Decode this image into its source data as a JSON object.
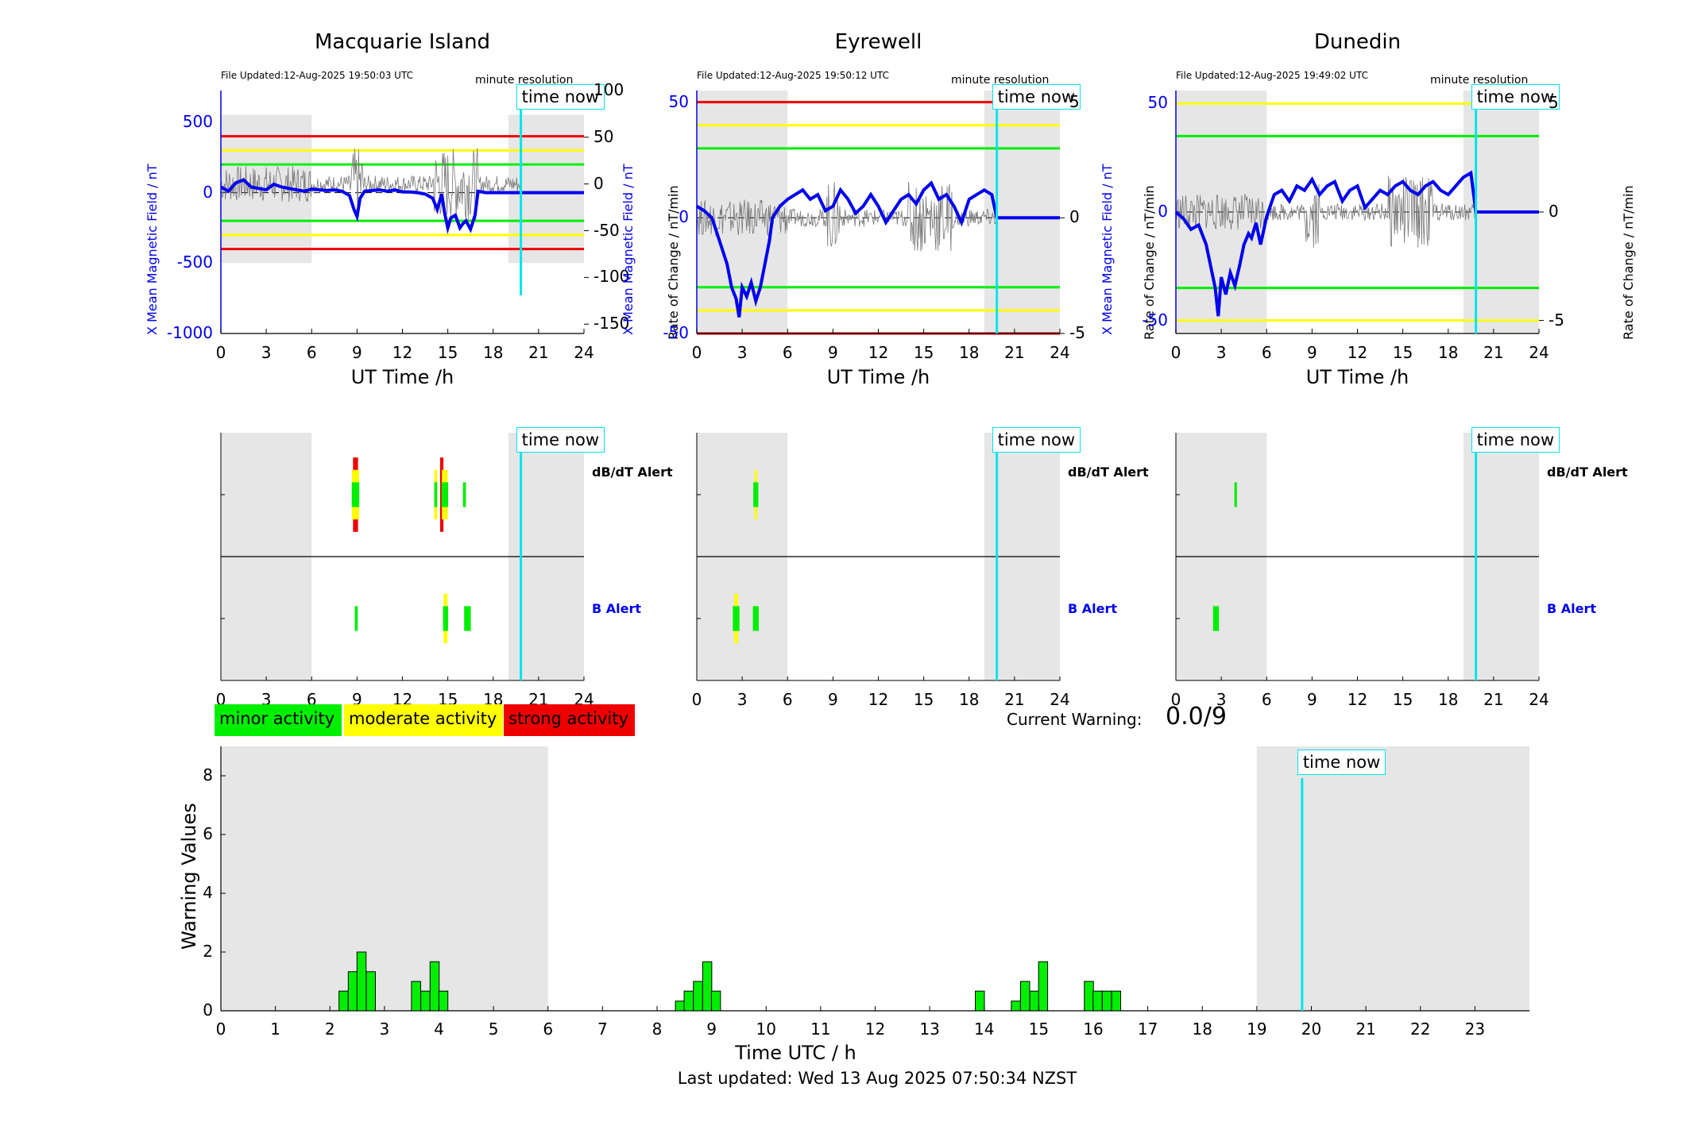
{
  "colors": {
    "shade": "#e6e6e6",
    "blue_line": "#0000ee",
    "grey_line": "#777777",
    "red": "#ee0000",
    "yellow": "#ffff00",
    "green": "#00ee00",
    "cyan": "#00e5ee",
    "black": "#000000"
  },
  "stations": [
    {
      "title": "Macquarie Island",
      "file_updated": "File Updated:12-Aug-2025 19:50:03 UTC",
      "resolution": "minute resolution",
      "time_now_label": "time now",
      "xlabel": "UT Time /h",
      "left_ylabel": "X Mean Magnetic Field / nT",
      "right_ylabel": "Rate of Change / nT/min",
      "x_ticks": [
        "0",
        "3",
        "6",
        "9",
        "12",
        "15",
        "18",
        "21",
        "24"
      ],
      "left_ticks": [
        {
          "v": 500,
          "t": "500"
        },
        {
          "v": 0,
          "t": "0"
        },
        {
          "v": -500,
          "t": "-500"
        },
        {
          "v": -1000,
          "t": "-1000"
        }
      ],
      "right_ticks": [
        {
          "v": 100,
          "t": "100"
        },
        {
          "v": 50,
          "t": "50"
        },
        {
          "v": 0,
          "t": "0"
        },
        {
          "v": -50,
          "t": "-50"
        },
        {
          "v": -100,
          "t": "-100"
        },
        {
          "v": -150,
          "t": "-150"
        }
      ],
      "left_range": [
        -1000,
        725
      ],
      "right_range": [
        -160,
        100
      ],
      "shade_top_frac": 0.1,
      "shade_bottom_frac": 0.71,
      "levels_left": [
        {
          "v": 400,
          "c": "red"
        },
        {
          "v": 300,
          "c": "yellow"
        },
        {
          "v": 200,
          "c": "green"
        },
        {
          "v": -200,
          "c": "green"
        },
        {
          "v": -300,
          "c": "yellow"
        },
        {
          "v": -400,
          "c": "red"
        }
      ],
      "time_now_h": 19.83,
      "series_x_mean": {
        "x": [
          0,
          0.5,
          1,
          1.5,
          2,
          2.5,
          3,
          3.5,
          4,
          4.5,
          5,
          5.5,
          6,
          6.5,
          7,
          7.5,
          8,
          8.5,
          8.8,
          9,
          9.2,
          9.5,
          10,
          10.5,
          11,
          11.5,
          12,
          12.5,
          13,
          13.5,
          14,
          14.3,
          14.6,
          14.8,
          15,
          15.2,
          15.5,
          15.8,
          16,
          16.2,
          16.5,
          16.8,
          17,
          17.5,
          18,
          18.5,
          19,
          19.5,
          19.83,
          20,
          21,
          22,
          23,
          24
        ],
        "y": [
          40,
          10,
          70,
          90,
          40,
          30,
          20,
          60,
          40,
          30,
          20,
          10,
          25,
          20,
          15,
          20,
          10,
          -20,
          -120,
          -170,
          -40,
          10,
          15,
          20,
          10,
          20,
          5,
          5,
          0,
          -10,
          -40,
          -120,
          -10,
          -150,
          -250,
          -180,
          -160,
          -250,
          -220,
          -200,
          -260,
          -160,
          10,
          0,
          0,
          0,
          0,
          0,
          0,
          0,
          0,
          0,
          0,
          0
        ]
      },
      "alerts": {
        "dbdt_label": "dB/dT Alert",
        "b_label": "B Alert",
        "dbdt_bars": [
          {
            "x": 8.9,
            "w": 0.6,
            "c": "red",
            "h": 0.6
          },
          {
            "x": 8.9,
            "w": 0.85,
            "c": "yellow",
            "h": 0.4
          },
          {
            "x": 8.9,
            "w": 0.9,
            "c": "green",
            "h": 0.2
          },
          {
            "x": 14.2,
            "w": 0.35,
            "c": "yellow",
            "h": 0.4
          },
          {
            "x": 14.2,
            "w": 0.35,
            "c": "green",
            "h": 0.2
          },
          {
            "x": 14.6,
            "w": 0.4,
            "c": "red",
            "h": 0.6
          },
          {
            "x": 14.8,
            "w": 0.7,
            "c": "yellow",
            "h": 0.4
          },
          {
            "x": 14.8,
            "w": 0.8,
            "c": "green",
            "h": 0.2
          },
          {
            "x": 16.1,
            "w": 0.35,
            "c": "green",
            "h": 0.2
          }
        ],
        "b_bars": [
          {
            "x": 8.95,
            "w": 0.35,
            "c": "green",
            "h": 0.2
          },
          {
            "x": 14.85,
            "w": 0.45,
            "c": "yellow",
            "h": 0.4
          },
          {
            "x": 14.85,
            "w": 0.6,
            "c": "green",
            "h": 0.2
          },
          {
            "x": 16.3,
            "w": 0.8,
            "c": "green",
            "h": 0.2
          }
        ]
      }
    },
    {
      "title": "Eyrewell",
      "file_updated": "File Updated:12-Aug-2025 19:50:12 UTC",
      "resolution": "minute resolution",
      "time_now_label": "time now",
      "xlabel": "UT Time /h",
      "left_ylabel": "X Mean Magnetic Field / nT",
      "right_ylabel": "Rate of Change / nT/min",
      "x_ticks": [
        "0",
        "3",
        "6",
        "9",
        "12",
        "15",
        "18",
        "21",
        "24"
      ],
      "left_ticks": [
        {
          "v": 50,
          "t": "50"
        },
        {
          "v": 0,
          "t": "0"
        },
        {
          "v": -50,
          "t": "-50"
        }
      ],
      "right_ticks": [
        {
          "v": 5,
          "t": "5"
        },
        {
          "v": 0,
          "t": "0"
        },
        {
          "v": -5,
          "t": "-5"
        }
      ],
      "left_range": [
        -50,
        55
      ],
      "right_range": [
        -5,
        5.5
      ],
      "shade_top_frac": 0.0,
      "shade_bottom_frac": 1.0,
      "levels_left": [
        {
          "v": 50,
          "c": "red"
        },
        {
          "v": 40,
          "c": "yellow"
        },
        {
          "v": 30,
          "c": "green"
        },
        {
          "v": -30,
          "c": "green"
        },
        {
          "v": -40,
          "c": "yellow"
        },
        {
          "v": -50,
          "c": "red"
        }
      ],
      "time_now_h": 19.83,
      "series_x_mean": {
        "x": [
          0,
          0.5,
          1,
          1.5,
          2,
          2.3,
          2.6,
          2.8,
          3,
          3.3,
          3.6,
          3.9,
          4.2,
          4.5,
          4.8,
          5,
          5.5,
          6,
          6.5,
          7,
          7.5,
          8,
          8.5,
          9,
          9.5,
          10,
          10.5,
          11,
          11.5,
          12,
          12.5,
          13,
          13.5,
          14,
          14.5,
          15,
          15.5,
          16,
          16.5,
          17,
          17.5,
          18,
          18.5,
          19,
          19.5,
          19.83,
          20,
          21,
          22,
          23,
          24
        ],
        "y": [
          5,
          3,
          0,
          -10,
          -20,
          -30,
          -35,
          -43,
          -30,
          -34,
          -28,
          -36,
          -30,
          -20,
          -10,
          0,
          5,
          8,
          10,
          12,
          8,
          10,
          3,
          5,
          12,
          8,
          2,
          5,
          10,
          5,
          -2,
          3,
          8,
          10,
          6,
          12,
          15,
          8,
          10,
          5,
          -2,
          8,
          10,
          12,
          10,
          0,
          0,
          0,
          0,
          0,
          0
        ]
      },
      "alerts": {
        "dbdt_label": "dB/dT Alert",
        "b_label": "B Alert",
        "dbdt_bars": [
          {
            "x": 3.9,
            "w": 0.3,
            "c": "yellow",
            "h": 0.4
          },
          {
            "x": 3.9,
            "w": 0.6,
            "c": "green",
            "h": 0.2
          }
        ],
        "b_bars": [
          {
            "x": 2.6,
            "w": 0.45,
            "c": "yellow",
            "h": 0.4
          },
          {
            "x": 2.6,
            "w": 0.8,
            "c": "green",
            "h": 0.2
          },
          {
            "x": 3.9,
            "w": 0.7,
            "c": "green",
            "h": 0.2
          }
        ]
      }
    },
    {
      "title": "Dunedin",
      "file_updated": "File Updated:12-Aug-2025 19:49:02 UTC",
      "resolution": "minute resolution",
      "time_now_label": "time now",
      "xlabel": "UT Time /h",
      "left_ylabel": "X Mean Magnetic Field / nT",
      "right_ylabel": "Rate of Change / nT/min",
      "x_ticks": [
        "0",
        "3",
        "6",
        "9",
        "12",
        "15",
        "18",
        "21",
        "24"
      ],
      "left_ticks": [
        {
          "v": 50,
          "t": "50"
        },
        {
          "v": 0,
          "t": "0"
        },
        {
          "v": -50,
          "t": "-50"
        }
      ],
      "right_ticks": [
        {
          "v": 5,
          "t": "5"
        },
        {
          "v": 0,
          "t": "0"
        },
        {
          "v": -5,
          "t": "-5"
        }
      ],
      "left_range": [
        -56,
        56
      ],
      "right_range": [
        -5.6,
        5.6
      ],
      "shade_top_frac": 0.0,
      "shade_bottom_frac": 1.0,
      "levels_left": [
        {
          "v": 50,
          "c": "yellow"
        },
        {
          "v": 35,
          "c": "green"
        },
        {
          "v": -35,
          "c": "green"
        },
        {
          "v": -50,
          "c": "yellow"
        }
      ],
      "time_now_h": 19.83,
      "series_x_mean": {
        "x": [
          0,
          0.5,
          1,
          1.5,
          2,
          2.3,
          2.6,
          2.8,
          3,
          3.3,
          3.6,
          3.9,
          4.2,
          4.5,
          4.8,
          5,
          5.3,
          5.6,
          6,
          6.5,
          7,
          7.5,
          8,
          8.5,
          9,
          9.5,
          10,
          10.5,
          11,
          11.5,
          12,
          12.5,
          13,
          13.5,
          14,
          14.5,
          15,
          15.5,
          16,
          16.5,
          17,
          17.5,
          18,
          18.5,
          19,
          19.5,
          19.83,
          20,
          21,
          22,
          23,
          24
        ],
        "y": [
          0,
          -3,
          -8,
          -6,
          -15,
          -25,
          -35,
          -48,
          -30,
          -38,
          -28,
          -34,
          -25,
          -15,
          -10,
          -12,
          -5,
          -15,
          -2,
          8,
          10,
          5,
          12,
          10,
          15,
          8,
          12,
          14,
          5,
          10,
          12,
          2,
          6,
          10,
          8,
          12,
          14,
          10,
          8,
          12,
          14,
          10,
          8,
          12,
          16,
          18,
          0,
          0,
          0,
          0,
          0,
          0
        ]
      },
      "alerts": {
        "dbdt_label": "dB/dT Alert",
        "b_label": "B Alert",
        "dbdt_bars": [
          {
            "x": 3.95,
            "w": 0.3,
            "c": "green",
            "h": 0.2
          }
        ],
        "b_bars": [
          {
            "x": 2.65,
            "w": 0.7,
            "c": "green",
            "h": 0.2
          }
        ]
      }
    }
  ],
  "legend": [
    {
      "label": "minor activity",
      "c": "green"
    },
    {
      "label": "moderate activity",
      "c": "yellow"
    },
    {
      "label": "strong activity",
      "c": "red"
    }
  ],
  "current_warning_label": "Current Warning:",
  "current_warning_value": "0.0/9",
  "chart_data": {
    "type": "bar",
    "title": "",
    "xlabel": "Time UTC / h",
    "ylabel": "Warning Values",
    "xlim": [
      0,
      24
    ],
    "ylim": [
      0,
      9
    ],
    "x_tick_labels": [
      "0",
      "1",
      "2",
      "3",
      "4",
      "5",
      "6",
      "7",
      "8",
      "9",
      "10",
      "11",
      "12",
      "13",
      "14",
      "15",
      "16",
      "17",
      "18",
      "19",
      "20",
      "21",
      "22",
      "23"
    ],
    "y_tick_labels": [
      "0",
      "2",
      "4",
      "6",
      "8"
    ],
    "time_now_h": 19.83,
    "time_now_label": "time now",
    "shaded_ranges_h": [
      [
        0,
        6
      ],
      [
        19,
        24
      ]
    ],
    "bar_width_h": 0.167,
    "x": [
      2.25,
      2.42,
      2.58,
      2.75,
      3.58,
      3.75,
      3.92,
      4.08,
      8.42,
      8.58,
      8.75,
      8.92,
      9.08,
      13.92,
      14.58,
      14.75,
      14.92,
      15.08,
      15.92,
      16.08,
      16.25,
      16.42
    ],
    "values": [
      0.67,
      1.33,
      2.0,
      1.33,
      1.0,
      0.67,
      1.67,
      0.67,
      0.33,
      0.67,
      1.0,
      1.67,
      0.67,
      0.67,
      0.33,
      1.0,
      0.67,
      1.67,
      1.0,
      0.67,
      0.67,
      0.67
    ]
  },
  "footer": "Last updated: Wed 13 Aug 2025 07:50:34 NZST"
}
